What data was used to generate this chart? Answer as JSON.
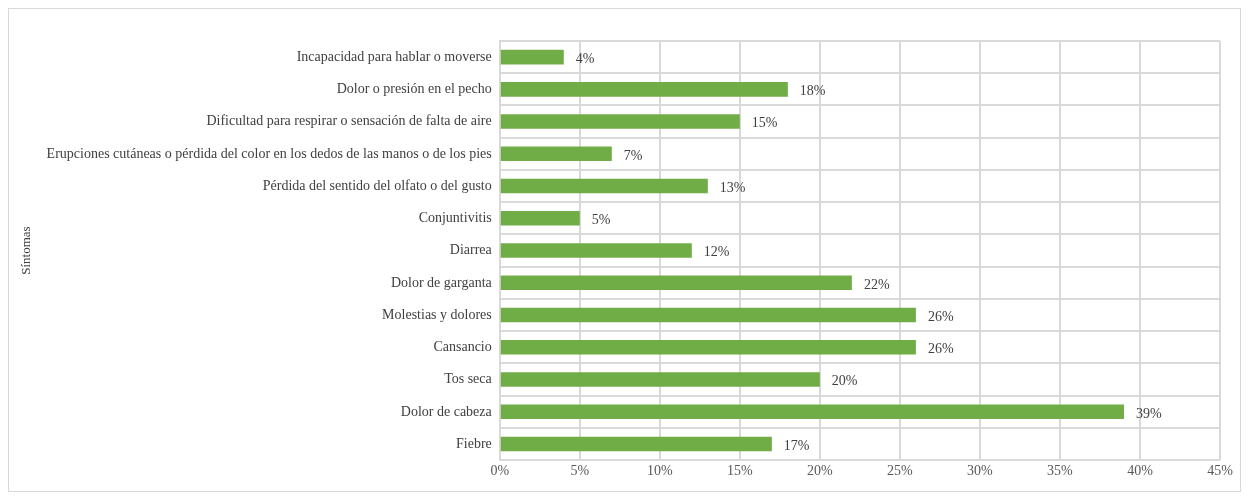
{
  "chart_data": {
    "type": "bar",
    "orientation": "horizontal",
    "ylabel": "Síntomas",
    "categories": [
      "Incapacidad para hablar o moverse",
      "Dolor o presión en el pecho",
      "Dificultad para respirar o sensación de falta de aire",
      "Erupciones cutáneas o pérdida del color en los dedos de las manos o de los pies",
      "Pérdida del sentido del olfato o del gusto",
      "Conjuntivitis",
      "Diarrea",
      "Dolor de garganta",
      "Molestias y dolores",
      "Cansancio",
      "Tos seca",
      "Dolor de cabeza",
      "Fiebre"
    ],
    "values": [
      4,
      18,
      15,
      7,
      13,
      5,
      12,
      22,
      26,
      26,
      20,
      39,
      17
    ],
    "value_labels": [
      "4%",
      "18%",
      "15%",
      "7%",
      "13%",
      "5%",
      "12%",
      "22%",
      "26%",
      "26%",
      "20%",
      "39%",
      "17%"
    ],
    "color": "#70ad47",
    "xlim": [
      0,
      45
    ],
    "xticks": [
      {
        "value": 0,
        "label": "0%"
      },
      {
        "value": 5,
        "label": "5%"
      },
      {
        "value": 10,
        "label": "10%"
      },
      {
        "value": 15,
        "label": "15%"
      },
      {
        "value": 20,
        "label": "20%"
      },
      {
        "value": 25,
        "label": "25%"
      },
      {
        "value": 30,
        "label": "30%"
      },
      {
        "value": 35,
        "label": "35%"
      },
      {
        "value": 40,
        "label": "40%"
      },
      {
        "value": 45,
        "label": "45%"
      }
    ],
    "grid": true,
    "legend": false
  }
}
